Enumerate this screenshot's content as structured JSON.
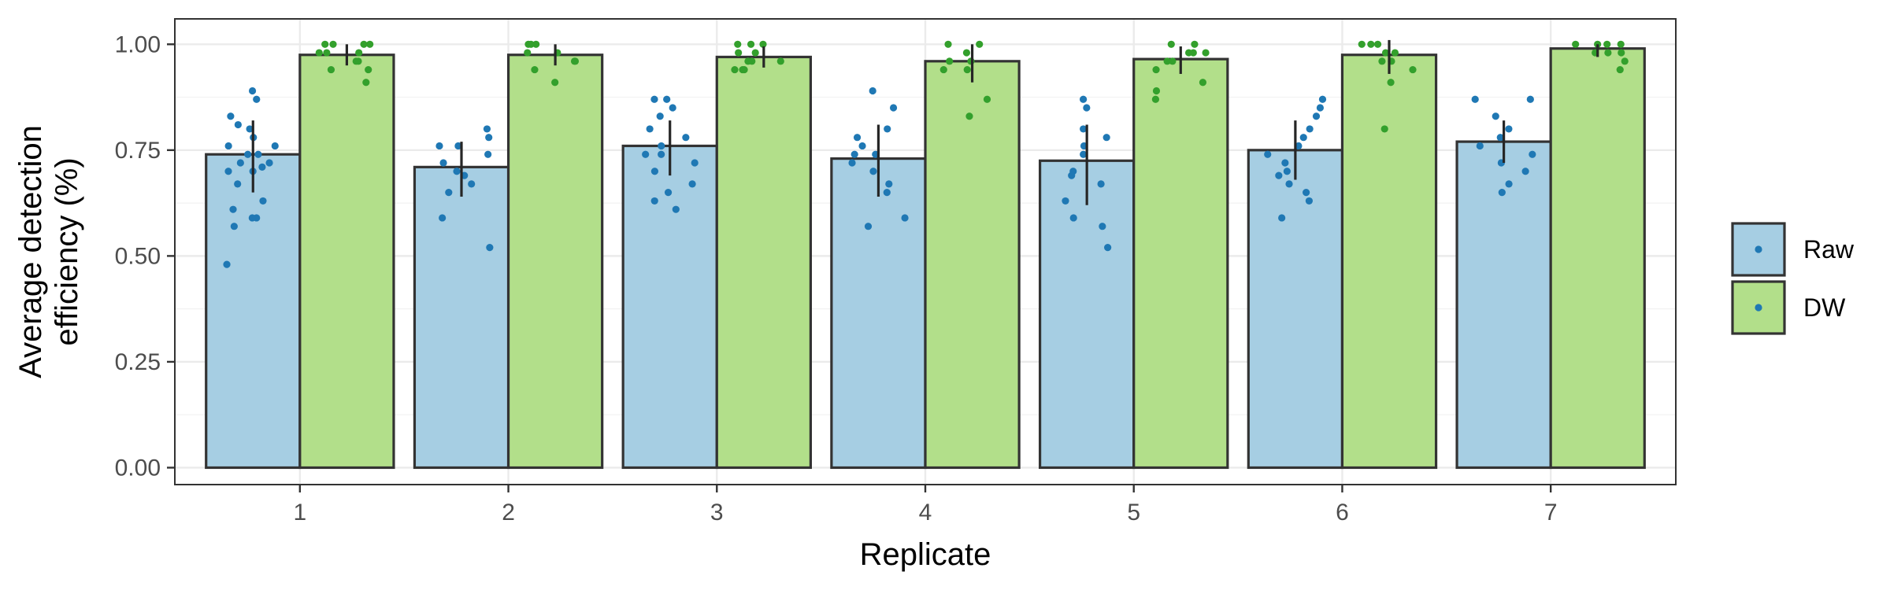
{
  "chart_data": {
    "type": "bar",
    "xlabel": "Replicate",
    "ylabel_lines": [
      "Average detection",
      "efficiency (%)"
    ],
    "categories": [
      "1",
      "2",
      "3",
      "4",
      "5",
      "6",
      "7"
    ],
    "ylim": [
      -0.04,
      1.06
    ],
    "yticks": [
      0.0,
      0.25,
      0.5,
      0.75,
      1.0
    ],
    "ytick_labels": [
      "0.00",
      "0.25",
      "0.50",
      "0.75",
      "1.00"
    ],
    "grid": true,
    "legend_position": "right",
    "series": [
      {
        "name": "Raw",
        "fill": "#a6cee3",
        "point_color": "#1f78b4",
        "values": [
          0.74,
          0.71,
          0.76,
          0.73,
          0.725,
          0.75,
          0.77
        ],
        "error_low": [
          0.65,
          0.64,
          0.69,
          0.64,
          0.62,
          0.68,
          0.72
        ],
        "error_high": [
          0.82,
          0.77,
          0.82,
          0.81,
          0.81,
          0.82,
          0.82
        ],
        "points": [
          [
            0.89,
            0.87,
            0.83,
            0.81,
            0.8,
            0.78,
            0.76,
            0.76,
            0.74,
            0.74,
            0.72,
            0.72,
            0.71,
            0.7,
            0.7,
            0.67,
            0.63,
            0.61,
            0.59,
            0.59,
            0.57,
            0.48
          ],
          [
            0.8,
            0.78,
            0.76,
            0.76,
            0.74,
            0.72,
            0.7,
            0.69,
            0.67,
            0.65,
            0.59,
            0.52
          ],
          [
            0.87,
            0.87,
            0.85,
            0.83,
            0.8,
            0.78,
            0.76,
            0.74,
            0.74,
            0.72,
            0.7,
            0.67,
            0.65,
            0.63,
            0.61
          ],
          [
            0.89,
            0.85,
            0.8,
            0.78,
            0.76,
            0.74,
            0.74,
            0.72,
            0.7,
            0.67,
            0.65,
            0.59,
            0.57
          ],
          [
            0.87,
            0.85,
            0.8,
            0.78,
            0.76,
            0.74,
            0.7,
            0.69,
            0.67,
            0.63,
            0.59,
            0.57,
            0.52
          ],
          [
            0.87,
            0.85,
            0.83,
            0.8,
            0.78,
            0.76,
            0.74,
            0.72,
            0.7,
            0.69,
            0.67,
            0.65,
            0.63,
            0.59
          ],
          [
            0.87,
            0.87,
            0.83,
            0.8,
            0.78,
            0.76,
            0.74,
            0.72,
            0.7,
            0.67,
            0.65
          ]
        ]
      },
      {
        "name": "DW",
        "fill": "#b2df8a",
        "point_color": "#33a02c",
        "values": [
          0.975,
          0.975,
          0.97,
          0.96,
          0.965,
          0.975,
          0.99
        ],
        "error_low": [
          0.95,
          0.95,
          0.945,
          0.91,
          0.93,
          0.93,
          0.97
        ],
        "error_high": [
          1.0,
          1.0,
          0.995,
          1.0,
          0.995,
          1.01,
          1.0
        ],
        "points": [
          [
            1.0,
            1.0,
            1.0,
            1.0,
            0.98,
            0.98,
            0.98,
            0.96,
            0.96,
            0.94,
            0.94,
            0.91
          ],
          [
            1.0,
            1.0,
            1.0,
            0.98,
            0.98,
            0.96,
            0.96,
            0.94,
            0.91
          ],
          [
            1.0,
            1.0,
            1.0,
            0.98,
            0.98,
            0.96,
            0.96,
            0.96,
            0.94,
            0.94,
            0.94
          ],
          [
            1.0,
            1.0,
            0.98,
            0.96,
            0.96,
            0.94,
            0.94,
            0.87,
            0.83
          ],
          [
            1.0,
            1.0,
            0.98,
            0.98,
            0.98,
            0.96,
            0.96,
            0.94,
            0.91,
            0.89,
            0.87
          ],
          [
            1.0,
            1.0,
            1.0,
            0.98,
            0.98,
            0.96,
            0.96,
            0.94,
            0.91,
            0.8
          ],
          [
            1.0,
            1.0,
            1.0,
            1.0,
            0.98,
            0.98,
            0.98,
            0.96,
            0.94
          ]
        ]
      }
    ]
  }
}
